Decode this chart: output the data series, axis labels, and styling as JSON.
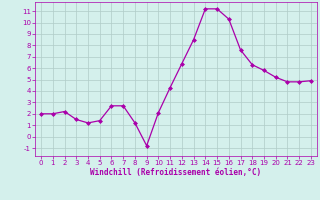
{
  "x": [
    0,
    1,
    2,
    3,
    4,
    5,
    6,
    7,
    8,
    9,
    10,
    11,
    12,
    13,
    14,
    15,
    16,
    17,
    18,
    19,
    20,
    21,
    22,
    23
  ],
  "y": [
    2,
    2,
    2.2,
    1.5,
    1.2,
    1.4,
    2.7,
    2.7,
    1.2,
    -0.8,
    2.1,
    4.3,
    6.4,
    8.5,
    11.2,
    11.2,
    10.3,
    7.6,
    6.3,
    5.8,
    5.2,
    4.8,
    4.8,
    4.9
  ],
  "line_color": "#aa00aa",
  "marker": "D",
  "markersize": 2.0,
  "linewidth": 0.9,
  "background_color": "#d4f0ec",
  "grid_color": "#b0ccc8",
  "xlabel": "Windchill (Refroidissement éolien,°C)",
  "xlabel_color": "#aa00aa",
  "tick_color": "#aa00aa",
  "xlim": [
    -0.5,
    23.5
  ],
  "ylim": [
    -1.7,
    11.8
  ],
  "yticks": [
    -1,
    0,
    1,
    2,
    3,
    4,
    5,
    6,
    7,
    8,
    9,
    10,
    11
  ],
  "xticks": [
    0,
    1,
    2,
    3,
    4,
    5,
    6,
    7,
    8,
    9,
    10,
    11,
    12,
    13,
    14,
    15,
    16,
    17,
    18,
    19,
    20,
    21,
    22,
    23
  ],
  "tick_fontsize": 5.0,
  "xlabel_fontsize": 5.5
}
